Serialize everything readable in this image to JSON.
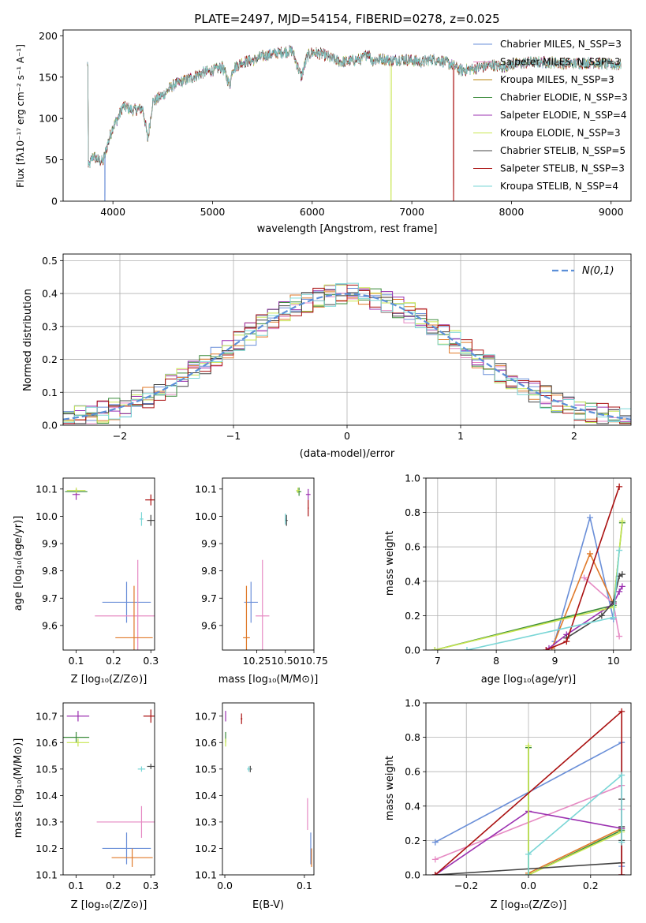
{
  "chart_data": [
    {
      "id": "spectrum",
      "type": "line",
      "title": "PLATE=2497, MJD=54154, FIBERID=0278, z=0.025",
      "xlabel": "wavelength [Angstrom, rest frame]",
      "ylabel": "Flux [fλ10⁻¹⁷ erg cm⁻² s⁻¹ A⁻¹]",
      "xlim": [
        3500,
        9200
      ],
      "ylim": [
        0,
        207
      ],
      "xticks": [
        4000,
        5000,
        6000,
        7000,
        8000,
        9000
      ],
      "yticks": [
        0,
        50,
        100,
        150,
        200
      ],
      "legend_position": "upper-right",
      "continuum": {
        "x": [
          3750,
          3800,
          3850,
          3900,
          3950,
          4000,
          4050,
          4100,
          4200,
          4300,
          4350,
          4400,
          4500,
          4600,
          4700,
          4800,
          4900,
          5000,
          5100,
          5175,
          5200,
          5300,
          5400,
          5500,
          5600,
          5700,
          5800,
          5890,
          5950,
          6000,
          6100,
          6200,
          6300,
          6400,
          6500,
          6563,
          6600,
          6700,
          6800,
          6900,
          7000,
          7100,
          7200,
          7300,
          7400,
          7500,
          7600,
          7700,
          7800,
          7900,
          8000,
          8200,
          8400,
          8600,
          8800,
          9000,
          9100
        ],
        "y": [
          40,
          55,
          50,
          48,
          70,
          90,
          100,
          115,
          110,
          112,
          75,
          120,
          128,
          140,
          145,
          150,
          155,
          158,
          162,
          140,
          160,
          168,
          170,
          175,
          178,
          180,
          182,
          150,
          175,
          180,
          178,
          172,
          168,
          170,
          172,
          180,
          170,
          172,
          170,
          172,
          170,
          168,
          172,
          170,
          165,
          158,
          160,
          162,
          165,
          162,
          165,
          168,
          168,
          166,
          168,
          165,
          165
        ]
      },
      "series": [
        {
          "name": "Chabrier MILES, N_SSP=3",
          "color": "#6a8fd8"
        },
        {
          "name": "Salpeter MILES, N_SSP=3",
          "color": "#e68ac3"
        },
        {
          "name": "Kroupa MILES, N_SSP=3",
          "color": "#b8860b"
        },
        {
          "name": "Chabrier ELODIE, N_SSP=3",
          "color": "#3a8a3a"
        },
        {
          "name": "Salpeter ELODIE, N_SSP=4",
          "color": "#9b30b0"
        },
        {
          "name": "Kroupa ELODIE, N_SSP=3",
          "color": "#c8e650"
        },
        {
          "name": "Chabrier STELIB, N_SSP=5",
          "color": "#444444"
        },
        {
          "name": "Salpeter STELIB, N_SSP=3",
          "color": "#aa1111"
        },
        {
          "name": "Kroupa STELIB, N_SSP=4",
          "color": "#7ad6d6"
        }
      ],
      "dropouts": [
        {
          "series": 5,
          "x": 6790
        },
        {
          "series": 7,
          "x": 7420
        },
        {
          "series": 0,
          "x": 3920
        }
      ]
    },
    {
      "id": "residuals",
      "type": "line",
      "title": "",
      "xlabel": "(data-model)/error",
      "ylabel": "Normed distribution",
      "xlim": [
        -2.5,
        2.5
      ],
      "ylim": [
        0,
        0.52
      ],
      "xticks": [
        -2,
        -1,
        0,
        1,
        2
      ],
      "yticks": [
        0.0,
        0.1,
        0.2,
        0.3,
        0.4,
        0.5
      ],
      "grid": true,
      "legend_position": "upper-right",
      "reference": {
        "name": "N(0,1)",
        "type": "gaussian",
        "mean": 0,
        "sigma": 1,
        "color": "#5b8fd8"
      },
      "histogram": {
        "bin_width": 0.1,
        "range": [
          -2.5,
          2.5
        ],
        "colors": [
          "#6a8fd8",
          "#e68ac3",
          "#e07a2a",
          "#3a8a3a",
          "#9b30b0",
          "#c8e650",
          "#444444",
          "#aa1111",
          "#7ad6d6"
        ]
      }
    },
    {
      "id": "z-age",
      "type": "scatter",
      "xlabel": "Z [log₁₀(Z/Z⊙)]",
      "ylabel": "age  [log₁₀(age/yr)]",
      "xlim": [
        0.065,
        0.31
      ],
      "ylim": [
        9.51,
        10.14
      ],
      "xticks": [
        0.1,
        0.2,
        0.3
      ],
      "yticks": [
        9.6,
        9.7,
        9.8,
        9.9,
        10.0,
        10.1
      ],
      "points": [
        {
          "x": 0.235,
          "y": 9.685,
          "xerr": 0.065,
          "yerr": 0.075,
          "color": "#6a8fd8"
        },
        {
          "x": 0.265,
          "y": 9.635,
          "xerr": 0.115,
          "yerr": 0.205,
          "color": "#e68ac3"
        },
        {
          "x": 0.255,
          "y": 9.555,
          "xerr": 0.05,
          "yerr": 0.19,
          "color": "#e07a2a"
        },
        {
          "x": 0.1,
          "y": 10.09,
          "xerr": 0.03,
          "yerr": 0.01,
          "color": "#3a8a3a"
        },
        {
          "x": 0.1,
          "y": 10.08,
          "xerr": 0.01,
          "yerr": 0.02,
          "color": "#9b30b0"
        },
        {
          "x": 0.1,
          "y": 10.095,
          "xerr": 0.025,
          "yerr": 0.01,
          "color": "#c8e650"
        },
        {
          "x": 0.3,
          "y": 9.985,
          "xerr": 0.01,
          "yerr": 0.02,
          "color": "#444444"
        },
        {
          "x": 0.3,
          "y": 10.06,
          "xerr": 0.015,
          "yerr": 0.02,
          "color": "#aa1111"
        },
        {
          "x": 0.275,
          "y": 9.99,
          "xerr": 0.005,
          "yerr": 0.025,
          "color": "#7ad6d6"
        }
      ]
    },
    {
      "id": "mass-age",
      "type": "scatter",
      "xlabel": "mass [log₁₀(M/M⊙)]",
      "ylabel": "",
      "xlim": [
        9.95,
        10.75
      ],
      "ylim": [
        9.51,
        10.14
      ],
      "xticks": [
        10.25,
        10.5,
        10.75
      ],
      "yticks": [
        9.6,
        9.7,
        9.8,
        9.9,
        10.0,
        10.1
      ],
      "points": [
        {
          "x": 10.2,
          "y": 9.685,
          "xerr": 0.06,
          "yerr": 0.075,
          "color": "#6a8fd8"
        },
        {
          "x": 10.3,
          "y": 9.635,
          "xerr": 0.06,
          "yerr": 0.205,
          "color": "#e68ac3"
        },
        {
          "x": 10.16,
          "y": 9.555,
          "xerr": 0.03,
          "yerr": 0.19,
          "color": "#e07a2a"
        },
        {
          "x": 10.62,
          "y": 10.09,
          "xerr": 0.02,
          "yerr": 0.015,
          "color": "#3a8a3a"
        },
        {
          "x": 10.7,
          "y": 10.08,
          "xerr": 0.02,
          "yerr": 0.02,
          "color": "#9b30b0"
        },
        {
          "x": 10.61,
          "y": 10.095,
          "xerr": 0.015,
          "yerr": 0.01,
          "color": "#c8e650"
        },
        {
          "x": 10.51,
          "y": 9.985,
          "xerr": 0.01,
          "yerr": 0.02,
          "color": "#444444"
        },
        {
          "x": 10.7,
          "y": 10.03,
          "xerr": 0.005,
          "yerr": 0.03,
          "color": "#aa1111"
        },
        {
          "x": 10.5,
          "y": 9.99,
          "xerr": 0.005,
          "yerr": 0.02,
          "color": "#7ad6d6"
        }
      ]
    },
    {
      "id": "age-weight",
      "type": "line",
      "xlabel": "age  [log₁₀(age/yr)]",
      "ylabel": "mass weight",
      "xlim": [
        6.8,
        10.3
      ],
      "ylim": [
        0,
        1.0
      ],
      "xticks": [
        7,
        8,
        9,
        10
      ],
      "yticks": [
        0.0,
        0.2,
        0.4,
        0.6,
        0.8,
        1.0
      ],
      "grid": true,
      "series": [
        {
          "color": "#6a8fd8",
          "x": [
            9.0,
            9.6,
            10.0
          ],
          "y": [
            0.05,
            0.77,
            0.18
          ]
        },
        {
          "color": "#e68ac3",
          "x": [
            9.5,
            10.0,
            10.1
          ],
          "y": [
            0.42,
            0.27,
            0.08
          ]
        },
        {
          "color": "#e07a2a",
          "x": [
            8.95,
            9.6,
            10.0
          ],
          "y": [
            0.01,
            0.56,
            0.27
          ]
        },
        {
          "color": "#3a8a3a",
          "x": [
            6.95,
            10.0,
            10.15
          ],
          "y": [
            0.0,
            0.26,
            0.74
          ]
        },
        {
          "color": "#9b30b0",
          "x": [
            8.9,
            9.2,
            10.0,
            10.1,
            10.15
          ],
          "y": [
            0.01,
            0.09,
            0.27,
            0.34,
            0.37
          ]
        },
        {
          "color": "#c8e650",
          "x": [
            6.95,
            10.0,
            10.15
          ],
          "y": [
            0.0,
            0.25,
            0.75
          ]
        },
        {
          "color": "#444444",
          "x": [
            9.2,
            9.8,
            10.0,
            10.1,
            10.15
          ],
          "y": [
            0.07,
            0.2,
            0.28,
            0.43,
            0.44
          ]
        },
        {
          "color": "#aa1111",
          "x": [
            8.85,
            9.2,
            10.1
          ],
          "y": [
            0.0,
            0.05,
            0.95
          ]
        },
        {
          "color": "#7ad6d6",
          "x": [
            7.5,
            10.0,
            10.1
          ],
          "y": [
            0.0,
            0.19,
            0.58
          ]
        }
      ]
    },
    {
      "id": "z-mass",
      "type": "scatter",
      "xlabel": "Z [log₁₀(Z/Z⊙)]",
      "ylabel": "mass [log₁₀(M/M⊙)]",
      "xlim": [
        0.065,
        0.31
      ],
      "ylim": [
        10.1,
        10.75
      ],
      "xticks": [
        0.1,
        0.2,
        0.3
      ],
      "yticks": [
        10.1,
        10.2,
        10.3,
        10.4,
        10.5,
        10.6,
        10.7
      ],
      "points": [
        {
          "x": 0.235,
          "y": 10.2,
          "xerr": 0.065,
          "yerr": 0.06,
          "color": "#6a8fd8"
        },
        {
          "x": 0.275,
          "y": 10.3,
          "xerr": 0.12,
          "yerr": 0.06,
          "color": "#e68ac3"
        },
        {
          "x": 0.25,
          "y": 10.165,
          "xerr": 0.055,
          "yerr": 0.035,
          "color": "#e07a2a"
        },
        {
          "x": 0.1,
          "y": 10.62,
          "xerr": 0.035,
          "yerr": 0.02,
          "color": "#3a8a3a"
        },
        {
          "x": 0.105,
          "y": 10.7,
          "xerr": 0.03,
          "yerr": 0.02,
          "color": "#9b30b0"
        },
        {
          "x": 0.105,
          "y": 10.6,
          "xerr": 0.03,
          "yerr": 0.015,
          "color": "#c8e650"
        },
        {
          "x": 0.3,
          "y": 10.51,
          "xerr": 0.01,
          "yerr": 0.01,
          "color": "#444444"
        },
        {
          "x": 0.3,
          "y": 10.7,
          "xerr": 0.02,
          "yerr": 0.025,
          "color": "#aa1111"
        },
        {
          "x": 0.275,
          "y": 10.5,
          "xerr": 0.01,
          "yerr": 0.01,
          "color": "#7ad6d6"
        }
      ]
    },
    {
      "id": "ebv-mass",
      "type": "scatter",
      "xlabel": "E(B-V)",
      "ylabel": "",
      "xlim": [
        -0.003,
        0.112
      ],
      "ylim": [
        10.1,
        10.75
      ],
      "xticks": [
        0.0,
        0.1
      ],
      "yticks": [
        10.1,
        10.2,
        10.3,
        10.4,
        10.5,
        10.6,
        10.7
      ],
      "points": [
        {
          "x": 0.108,
          "y": 10.2,
          "xerr": 0,
          "yerr": 0.06,
          "color": "#6a8fd8"
        },
        {
          "x": 0.104,
          "y": 10.33,
          "xerr": 0,
          "yerr": 0.06,
          "color": "#e68ac3"
        },
        {
          "x": 0.109,
          "y": 10.165,
          "xerr": 0,
          "yerr": 0.035,
          "color": "#e07a2a"
        },
        {
          "x": 0.001,
          "y": 10.62,
          "xerr": 0,
          "yerr": 0.02,
          "color": "#3a8a3a"
        },
        {
          "x": 0.001,
          "y": 10.7,
          "xerr": 0,
          "yerr": 0.02,
          "color": "#9b30b0"
        },
        {
          "x": 0.001,
          "y": 10.6,
          "xerr": 0,
          "yerr": 0.015,
          "color": "#c8e650"
        },
        {
          "x": 0.032,
          "y": 10.5,
          "xerr": 0.002,
          "yerr": 0.012,
          "color": "#444444"
        },
        {
          "x": 0.021,
          "y": 10.69,
          "xerr": 0.001,
          "yerr": 0.02,
          "color": "#aa1111"
        },
        {
          "x": 0.03,
          "y": 10.5,
          "xerr": 0.002,
          "yerr": 0.01,
          "color": "#7ad6d6"
        }
      ]
    },
    {
      "id": "z-weight",
      "type": "line",
      "xlabel": "Z [log₁₀(Z/Z⊙)]",
      "ylabel": "mass weight",
      "xlim": [
        -0.33,
        0.33
      ],
      "ylim": [
        0,
        1.0
      ],
      "xticks": [
        -0.2,
        0.0,
        0.2
      ],
      "yticks": [
        0.0,
        0.2,
        0.4,
        0.6,
        0.8,
        1.0
      ],
      "grid": true,
      "series": [
        {
          "color": "#6a8fd8",
          "x": [
            -0.3,
            0.3,
            0.3
          ],
          "y": [
            0.19,
            0.77,
            0.05
          ]
        },
        {
          "color": "#e68ac3",
          "x": [
            -0.3,
            0.3,
            0.3
          ],
          "y": [
            0.09,
            0.52,
            0.38
          ]
        },
        {
          "color": "#e07a2a",
          "x": [
            0.0,
            0.3,
            0.3
          ],
          "y": [
            0.01,
            0.27,
            0.0
          ]
        },
        {
          "color": "#3a8a3a",
          "x": [
            0.0,
            0.0,
            0.3
          ],
          "y": [
            0.74,
            0.0,
            0.26
          ]
        },
        {
          "color": "#9b30b0",
          "x": [
            -0.3,
            0.0,
            0.3,
            0.3
          ],
          "y": [
            0.0,
            0.37,
            0.27,
            0.0
          ]
        },
        {
          "color": "#c8e650",
          "x": [
            0.0,
            0.0,
            0.3
          ],
          "y": [
            0.75,
            0.0,
            0.25
          ]
        },
        {
          "color": "#444444",
          "x": [
            -0.3,
            0.3,
            0.3,
            0.3,
            0.3
          ],
          "y": [
            0.0,
            0.07,
            0.44,
            0.28,
            0.2
          ]
        },
        {
          "color": "#aa1111",
          "x": [
            -0.3,
            0.3,
            0.3
          ],
          "y": [
            0.0,
            0.95,
            0.0
          ]
        },
        {
          "color": "#7ad6d6",
          "x": [
            0.0,
            0.0,
            0.3,
            0.3
          ],
          "y": [
            0.0,
            0.12,
            0.58,
            0.19
          ]
        }
      ]
    }
  ]
}
